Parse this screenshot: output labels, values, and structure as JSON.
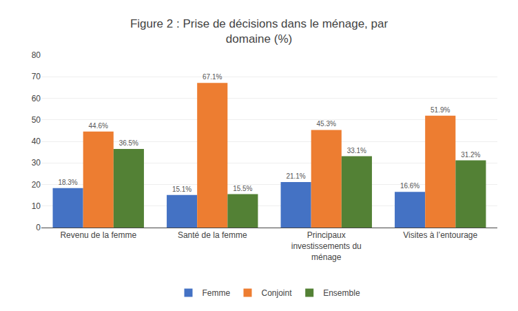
{
  "chart_data": {
    "type": "bar",
    "title": "Figure 2 : Prise de décisions dans le ménage, par\ndomaine (%)",
    "categories": [
      "Revenu de la femme",
      "Santé de la femme",
      "Principaux\ninvestissements du\nménage",
      "Visites à l’entourage"
    ],
    "series": [
      {
        "name": "Femme",
        "color": "#4472C4",
        "values": [
          18.3,
          15.1,
          21.1,
          16.6
        ],
        "value_labels": [
          "18.3%",
          "15.1%",
          "21.1%",
          "16.6%"
        ]
      },
      {
        "name": "Conjoint",
        "color": "#ED7D31",
        "values": [
          44.6,
          67.1,
          45.3,
          51.9
        ],
        "value_labels": [
          "44.6%",
          "67.1%",
          "45.3%",
          "51.9%"
        ]
      },
      {
        "name": "Ensemble",
        "color": "#538135",
        "values": [
          36.5,
          15.5,
          33.1,
          31.2
        ],
        "value_labels": [
          "36.5%",
          "15.5%",
          "33.1%",
          "31.2%"
        ]
      }
    ],
    "ylim": [
      0,
      80
    ],
    "yticks": [
      0,
      10,
      20,
      30,
      40,
      50,
      60,
      70,
      80
    ],
    "grid": true,
    "legend": "bottom",
    "data_labels": true
  }
}
